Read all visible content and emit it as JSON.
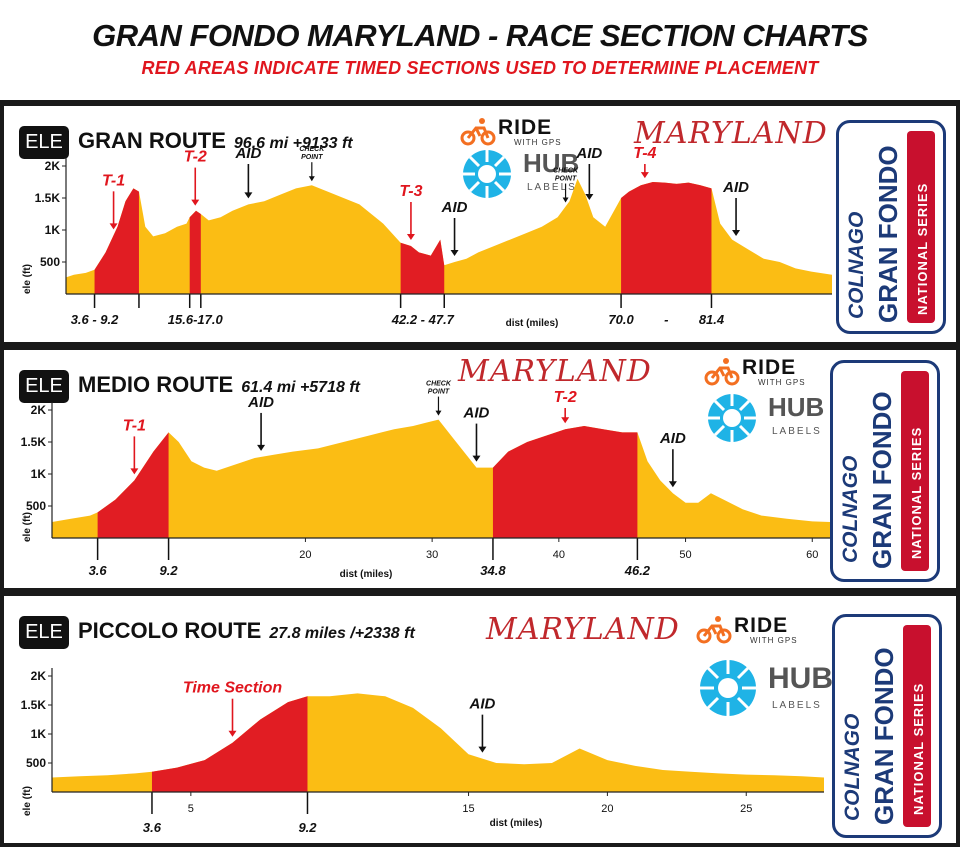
{
  "header": {
    "title": "GRAN FONDO MARYLAND - RACE SECTION CHARTS",
    "subtitle": "RED AREAS INDICATE TIMED SECTIONS USED TO DETERMINE PLACEMENT"
  },
  "common": {
    "ele_badge": "ELE",
    "maryland": "MARYLAND",
    "ride_logo": "RIDE",
    "ride_sub": "WITH GPS",
    "hub_logo": "HUB",
    "hub_sub": "LABELS",
    "colnago": "COLNAGO",
    "gran_fondo": "GRAN FONDO",
    "national_series": "NATIONAL SERIES",
    "ylabel": "ele (ft)",
    "xlabel": "dist (miles)"
  },
  "colors": {
    "profile_fill": "#fbbd14",
    "timed_fill": "#e11d23",
    "marker": "#e0161e",
    "badge_blue": "#1c3a78",
    "badge_red": "#c8102e",
    "hub_cyan": "#1fb3e6"
  },
  "routes": [
    {
      "name": "GRAN ROUTE",
      "stats": "96.6 mi +9133 ft"
    },
    {
      "name": "MEDIO ROUTE",
      "stats": "61.4 mi +5718 ft"
    },
    {
      "name": "PICCOLO ROUTE",
      "stats": "27.8 miles /+2338 ft"
    }
  ],
  "chart_data": [
    {
      "type": "area",
      "title": "GRAN ROUTE",
      "xlabel": "dist (miles)",
      "ylabel": "ele (ft)",
      "xlim": [
        0,
        96.6
      ],
      "ylim": [
        0,
        2000
      ],
      "yticks": [
        "500",
        "1K",
        "1.5K",
        "2K"
      ],
      "xticks": [],
      "x": [
        0,
        1,
        2.5,
        3.6,
        5,
        6.5,
        7.5,
        8.5,
        9.2,
        10,
        11,
        12.5,
        14,
        15.2,
        15.6,
        16.4,
        17,
        18,
        19.5,
        21,
        23,
        25,
        27,
        29,
        31,
        33,
        35,
        37,
        38.5,
        40,
        42.2,
        43.5,
        44.5,
        46,
        47.2,
        47.7,
        49,
        50.5,
        52,
        54,
        56,
        58,
        60,
        62,
        63.5,
        64.5,
        65.5,
        66.5,
        68,
        70,
        71,
        72.5,
        74,
        75.5,
        77,
        78.5,
        80,
        81.4,
        82.5,
        84,
        86,
        88,
        90,
        92,
        94,
        96.6
      ],
      "y": [
        260,
        300,
        330,
        380,
        650,
        1050,
        1450,
        1650,
        1600,
        1050,
        900,
        950,
        1050,
        1100,
        1200,
        1300,
        1250,
        1150,
        1200,
        1300,
        1400,
        1450,
        1550,
        1650,
        1700,
        1600,
        1500,
        1400,
        1250,
        1100,
        800,
        750,
        650,
        600,
        850,
        450,
        500,
        550,
        650,
        750,
        850,
        950,
        1050,
        1200,
        1450,
        1800,
        1550,
        1200,
        1050,
        1500,
        1600,
        1700,
        1750,
        1740,
        1720,
        1740,
        1700,
        1650,
        1100,
        850,
        700,
        550,
        500,
        400,
        350,
        300
      ],
      "timed_sections": [
        [
          3.6,
          9.2
        ],
        [
          15.6,
          17.0
        ],
        [
          42.2,
          47.7
        ],
        [
          70.0,
          81.4
        ]
      ],
      "range_labels": [
        "3.6  -  9.2",
        "15.6-17.0",
        "42.2  -  47.7",
        "70.0",
        "-",
        "81.4"
      ],
      "markers": [
        {
          "label": "T-1",
          "kind": "timed",
          "x": 6
        },
        {
          "label": "T-2",
          "kind": "timed",
          "x": 16.3
        },
        {
          "label": "AID",
          "kind": "aid",
          "x": 23
        },
        {
          "label": "CHECK POINT",
          "kind": "checkpoint",
          "x": 31
        },
        {
          "label": "T-3",
          "kind": "timed",
          "x": 43.5
        },
        {
          "label": "AID",
          "kind": "aid",
          "x": 49
        },
        {
          "label": "CHECK POINT",
          "kind": "checkpoint",
          "x": 63
        },
        {
          "label": "AID",
          "kind": "aid",
          "x": 66
        },
        {
          "label": "T-4",
          "kind": "timed",
          "x": 73
        },
        {
          "label": "AID",
          "kind": "aid",
          "x": 84.5
        }
      ]
    },
    {
      "type": "area",
      "title": "MEDIO ROUTE",
      "xlabel": "dist (miles)",
      "ylabel": "ele (ft)",
      "xlim": [
        0,
        61.4
      ],
      "ylim": [
        0,
        2000
      ],
      "yticks": [
        "500",
        "1K",
        "1.5K",
        "2K"
      ],
      "xticks": [
        "20",
        "30",
        "40",
        "50",
        "60"
      ],
      "x": [
        0,
        1.5,
        3,
        3.6,
        5,
        6.5,
        8,
        9.2,
        10,
        11,
        12,
        13,
        14.5,
        16,
        17.5,
        19,
        21,
        23,
        25,
        27,
        28.5,
        29.5,
        30.5,
        31.5,
        32.5,
        33.5,
        34.8,
        36,
        37.5,
        39,
        40.5,
        42,
        43.5,
        45,
        46.2,
        47,
        48,
        49,
        50,
        51,
        52,
        53,
        54.5,
        56,
        58,
        60,
        61.4
      ],
      "y": [
        250,
        300,
        350,
        400,
        600,
        900,
        1350,
        1650,
        1500,
        1200,
        1100,
        1050,
        1150,
        1250,
        1300,
        1350,
        1400,
        1500,
        1600,
        1700,
        1750,
        1800,
        1850,
        1600,
        1350,
        1100,
        1100,
        1350,
        1500,
        1600,
        1700,
        1750,
        1700,
        1650,
        1650,
        1200,
        900,
        700,
        550,
        550,
        700,
        600,
        450,
        350,
        300,
        260,
        250
      ],
      "timed_sections": [
        [
          3.6,
          9.2
        ],
        [
          34.8,
          46.2
        ]
      ],
      "range_labels": [
        "3.6",
        "9.2",
        "34.8",
        "46.2"
      ],
      "markers": [
        {
          "label": "T-1",
          "kind": "timed",
          "x": 6.5
        },
        {
          "label": "AID",
          "kind": "aid",
          "x": 16.5
        },
        {
          "label": "CHECK POINT",
          "kind": "checkpoint",
          "x": 30.5
        },
        {
          "label": "AID",
          "kind": "aid",
          "x": 33.5
        },
        {
          "label": "T-2",
          "kind": "timed",
          "x": 40.5
        },
        {
          "label": "AID",
          "kind": "aid",
          "x": 49
        }
      ]
    },
    {
      "type": "area",
      "title": "PICCOLO ROUTE",
      "xlabel": "dist (miles)",
      "ylabel": "ele (ft)",
      "xlim": [
        0,
        27.8
      ],
      "ylim": [
        0,
        2000
      ],
      "yticks": [
        "500",
        "1K",
        "1.5K",
        "2K"
      ],
      "xticks": [
        "5",
        "15",
        "20",
        "25"
      ],
      "x": [
        0,
        1,
        2,
        3,
        3.6,
        4.5,
        5.5,
        6.5,
        7.5,
        8.5,
        9.2,
        10,
        11,
        12,
        13,
        14,
        15,
        16,
        17,
        18,
        19,
        20,
        21,
        22,
        23,
        24,
        25,
        26,
        27,
        27.8
      ],
      "y": [
        250,
        270,
        290,
        320,
        350,
        420,
        550,
        850,
        1250,
        1550,
        1650,
        1650,
        1700,
        1650,
        1450,
        1100,
        650,
        500,
        480,
        500,
        750,
        550,
        450,
        380,
        350,
        320,
        300,
        290,
        270,
        250
      ],
      "timed_sections": [
        [
          3.6,
          9.2
        ]
      ],
      "range_labels": [
        "3.6",
        "9.2"
      ],
      "markers": [
        {
          "label": "Time Section",
          "kind": "timed",
          "x": 6.5
        },
        {
          "label": "AID",
          "kind": "aid",
          "x": 15.5
        }
      ]
    }
  ]
}
